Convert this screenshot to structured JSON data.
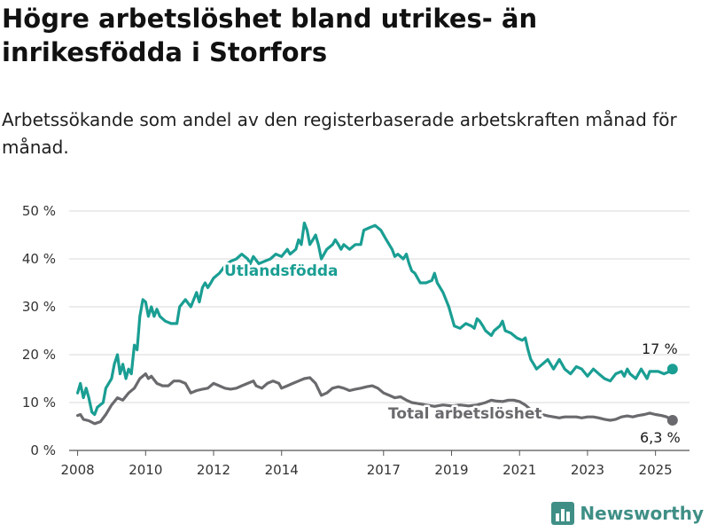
{
  "title": "Högre arbetslöshet bland utrikes- än inrikesfödda i Storfors",
  "subtitle": "Arbetssökande som andel av den registerbaserade arbetskraften månad för månad.",
  "brand": "Newsworthy",
  "colors": {
    "foreign": "#1a9e93",
    "total": "#6a6a6e",
    "grid": "#d9d9d9",
    "brand": "#3f8f86"
  },
  "chart_data": {
    "type": "line",
    "title": "Högre arbetslöshet bland utrikes- än inrikesfödda i Storfors",
    "xlabel": "",
    "ylabel": "",
    "xlim": [
      2007.75,
      2026.0
    ],
    "ylim": [
      0,
      50
    ],
    "y_ticks": [
      0,
      10,
      20,
      30,
      40,
      50
    ],
    "y_tick_labels": [
      "0 %",
      "10 %",
      "20 %",
      "30 %",
      "40 %",
      "50 %"
    ],
    "x_ticks": [
      2008,
      2010,
      2012,
      2014,
      2017,
      2019,
      2021,
      2023,
      2025
    ],
    "x_tick_labels": [
      "2008",
      "2010",
      "2012",
      "2014",
      "2017",
      "2019",
      "2021",
      "2023",
      "2025"
    ],
    "grid": true,
    "series": [
      {
        "name": "Utlandsfödda",
        "end_label": "17 %",
        "points": [
          [
            2008.0,
            12
          ],
          [
            2008.08,
            14
          ],
          [
            2008.17,
            11
          ],
          [
            2008.25,
            13
          ],
          [
            2008.33,
            11
          ],
          [
            2008.42,
            8
          ],
          [
            2008.5,
            7.5
          ],
          [
            2008.58,
            9
          ],
          [
            2008.75,
            10
          ],
          [
            2008.83,
            13
          ],
          [
            2009.0,
            15
          ],
          [
            2009.08,
            18
          ],
          [
            2009.17,
            20
          ],
          [
            2009.25,
            16
          ],
          [
            2009.33,
            18
          ],
          [
            2009.42,
            15
          ],
          [
            2009.5,
            17
          ],
          [
            2009.58,
            16
          ],
          [
            2009.67,
            22
          ],
          [
            2009.75,
            21
          ],
          [
            2009.83,
            28
          ],
          [
            2009.92,
            31.5
          ],
          [
            2010.0,
            31
          ],
          [
            2010.08,
            28
          ],
          [
            2010.17,
            30
          ],
          [
            2010.25,
            28
          ],
          [
            2010.33,
            29.5
          ],
          [
            2010.42,
            28
          ],
          [
            2010.58,
            27
          ],
          [
            2010.75,
            26.5
          ],
          [
            2010.92,
            26.5
          ],
          [
            2011.0,
            30
          ],
          [
            2011.17,
            31.5
          ],
          [
            2011.33,
            30
          ],
          [
            2011.5,
            33
          ],
          [
            2011.58,
            31
          ],
          [
            2011.67,
            34
          ],
          [
            2011.75,
            35
          ],
          [
            2011.83,
            34
          ],
          [
            2011.92,
            35
          ],
          [
            2012.0,
            36
          ],
          [
            2012.17,
            37
          ],
          [
            2012.33,
            38.5
          ],
          [
            2012.5,
            39.5
          ],
          [
            2012.67,
            40
          ],
          [
            2012.83,
            41
          ],
          [
            2013.0,
            40
          ],
          [
            2013.08,
            39
          ],
          [
            2013.17,
            40.5
          ],
          [
            2013.33,
            39
          ],
          [
            2013.5,
            39.5
          ],
          [
            2013.67,
            40
          ],
          [
            2013.83,
            41
          ],
          [
            2014.0,
            40.5
          ],
          [
            2014.17,
            42
          ],
          [
            2014.25,
            41
          ],
          [
            2014.42,
            42
          ],
          [
            2014.5,
            44
          ],
          [
            2014.58,
            43
          ],
          [
            2014.67,
            47.5
          ],
          [
            2014.75,
            46
          ],
          [
            2014.83,
            43
          ],
          [
            2014.92,
            44
          ],
          [
            2015.0,
            45
          ],
          [
            2015.08,
            43
          ],
          [
            2015.17,
            40
          ],
          [
            2015.33,
            42
          ],
          [
            2015.5,
            43
          ],
          [
            2015.58,
            44
          ],
          [
            2015.67,
            43
          ],
          [
            2015.75,
            42
          ],
          [
            2015.83,
            43
          ],
          [
            2016.0,
            42
          ],
          [
            2016.17,
            43
          ],
          [
            2016.33,
            43
          ],
          [
            2016.42,
            46
          ],
          [
            2016.58,
            46.5
          ],
          [
            2016.75,
            47
          ],
          [
            2016.92,
            46
          ],
          [
            2017.08,
            44
          ],
          [
            2017.25,
            42
          ],
          [
            2017.33,
            40.5
          ],
          [
            2017.42,
            41
          ],
          [
            2017.58,
            40
          ],
          [
            2017.67,
            41
          ],
          [
            2017.75,
            39
          ],
          [
            2017.83,
            37.5
          ],
          [
            2017.92,
            37
          ],
          [
            2018.08,
            35
          ],
          [
            2018.25,
            35
          ],
          [
            2018.42,
            35.5
          ],
          [
            2018.5,
            37
          ],
          [
            2018.58,
            35
          ],
          [
            2018.75,
            33
          ],
          [
            2018.92,
            30
          ],
          [
            2019.0,
            28
          ],
          [
            2019.08,
            26
          ],
          [
            2019.25,
            25.5
          ],
          [
            2019.42,
            26.5
          ],
          [
            2019.58,
            26
          ],
          [
            2019.67,
            25.5
          ],
          [
            2019.75,
            27.5
          ],
          [
            2019.83,
            27
          ],
          [
            2019.92,
            26
          ],
          [
            2020.0,
            25
          ],
          [
            2020.17,
            24
          ],
          [
            2020.25,
            25
          ],
          [
            2020.42,
            26
          ],
          [
            2020.5,
            27
          ],
          [
            2020.58,
            25
          ],
          [
            2020.75,
            24.5
          ],
          [
            2020.92,
            23.5
          ],
          [
            2021.08,
            23
          ],
          [
            2021.17,
            23.5
          ],
          [
            2021.25,
            21
          ],
          [
            2021.33,
            19
          ],
          [
            2021.42,
            18
          ],
          [
            2021.5,
            17
          ],
          [
            2021.67,
            18
          ],
          [
            2021.83,
            19
          ],
          [
            2022.0,
            17
          ],
          [
            2022.17,
            19
          ],
          [
            2022.33,
            17
          ],
          [
            2022.5,
            16
          ],
          [
            2022.67,
            17.5
          ],
          [
            2022.83,
            17
          ],
          [
            2023.0,
            15.5
          ],
          [
            2023.17,
            17
          ],
          [
            2023.33,
            16
          ],
          [
            2023.5,
            15
          ],
          [
            2023.67,
            14.5
          ],
          [
            2023.83,
            16
          ],
          [
            2024.0,
            16.5
          ],
          [
            2024.08,
            15.5
          ],
          [
            2024.17,
            17
          ],
          [
            2024.25,
            16
          ],
          [
            2024.42,
            15
          ],
          [
            2024.58,
            17
          ],
          [
            2024.75,
            15
          ],
          [
            2024.83,
            16.5
          ],
          [
            2025.08,
            16.5
          ],
          [
            2025.25,
            16
          ],
          [
            2025.42,
            16.5
          ],
          [
            2025.5,
            17
          ]
        ]
      },
      {
        "name": "Total arbetslöshet",
        "end_label": "6,3 %",
        "points": [
          [
            2008.0,
            7.3
          ],
          [
            2008.08,
            7.5
          ],
          [
            2008.17,
            6.5
          ],
          [
            2008.33,
            6.2
          ],
          [
            2008.5,
            5.6
          ],
          [
            2008.67,
            6
          ],
          [
            2008.83,
            7.5
          ],
          [
            2009.0,
            9.5
          ],
          [
            2009.17,
            11
          ],
          [
            2009.33,
            10.5
          ],
          [
            2009.5,
            12
          ],
          [
            2009.67,
            13
          ],
          [
            2009.83,
            15
          ],
          [
            2010.0,
            16
          ],
          [
            2010.08,
            15
          ],
          [
            2010.17,
            15.5
          ],
          [
            2010.33,
            14
          ],
          [
            2010.5,
            13.5
          ],
          [
            2010.67,
            13.5
          ],
          [
            2010.83,
            14.5
          ],
          [
            2011.0,
            14.5
          ],
          [
            2011.17,
            14
          ],
          [
            2011.33,
            12
          ],
          [
            2011.5,
            12.5
          ],
          [
            2011.67,
            12.8
          ],
          [
            2011.83,
            13
          ],
          [
            2012.0,
            14
          ],
          [
            2012.17,
            13.5
          ],
          [
            2012.33,
            13
          ],
          [
            2012.5,
            12.8
          ],
          [
            2012.67,
            13
          ],
          [
            2012.83,
            13.5
          ],
          [
            2013.0,
            14
          ],
          [
            2013.17,
            14.5
          ],
          [
            2013.25,
            13.5
          ],
          [
            2013.42,
            13
          ],
          [
            2013.58,
            14
          ],
          [
            2013.75,
            14.5
          ],
          [
            2013.92,
            14
          ],
          [
            2014.0,
            13
          ],
          [
            2014.17,
            13.5
          ],
          [
            2014.33,
            14
          ],
          [
            2014.5,
            14.5
          ],
          [
            2014.67,
            15
          ],
          [
            2014.83,
            15.2
          ],
          [
            2015.0,
            14
          ],
          [
            2015.17,
            11.5
          ],
          [
            2015.33,
            12
          ],
          [
            2015.5,
            13
          ],
          [
            2015.67,
            13.3
          ],
          [
            2015.83,
            13
          ],
          [
            2016.0,
            12.5
          ],
          [
            2016.17,
            12.8
          ],
          [
            2016.33,
            13
          ],
          [
            2016.5,
            13.3
          ],
          [
            2016.67,
            13.5
          ],
          [
            2016.83,
            13
          ],
          [
            2017.0,
            12
          ],
          [
            2017.17,
            11.5
          ],
          [
            2017.33,
            11
          ],
          [
            2017.5,
            11.2
          ],
          [
            2017.67,
            10.5
          ],
          [
            2017.83,
            10
          ],
          [
            2018.0,
            9.8
          ],
          [
            2018.25,
            9.5
          ],
          [
            2018.5,
            9.2
          ],
          [
            2018.75,
            9.5
          ],
          [
            2019.0,
            9.3
          ],
          [
            2019.25,
            9.5
          ],
          [
            2019.5,
            9.3
          ],
          [
            2019.75,
            9.5
          ],
          [
            2020.0,
            10
          ],
          [
            2020.17,
            10.5
          ],
          [
            2020.33,
            10.3
          ],
          [
            2020.5,
            10.2
          ],
          [
            2020.67,
            10.5
          ],
          [
            2020.83,
            10.5
          ],
          [
            2021.0,
            10.2
          ],
          [
            2021.17,
            9.5
          ],
          [
            2021.33,
            8.5
          ],
          [
            2021.5,
            8
          ],
          [
            2021.67,
            7.5
          ],
          [
            2021.83,
            7.2
          ],
          [
            2022.0,
            7
          ],
          [
            2022.17,
            6.8
          ],
          [
            2022.33,
            7
          ],
          [
            2022.5,
            7
          ],
          [
            2022.67,
            7
          ],
          [
            2022.83,
            6.8
          ],
          [
            2023.0,
            7
          ],
          [
            2023.17,
            7
          ],
          [
            2023.33,
            6.8
          ],
          [
            2023.5,
            6.5
          ],
          [
            2023.67,
            6.3
          ],
          [
            2023.83,
            6.5
          ],
          [
            2024.0,
            7
          ],
          [
            2024.17,
            7.2
          ],
          [
            2024.33,
            7
          ],
          [
            2024.5,
            7.3
          ],
          [
            2024.67,
            7.5
          ],
          [
            2024.83,
            7.8
          ],
          [
            2025.0,
            7.5
          ],
          [
            2025.17,
            7.3
          ],
          [
            2025.33,
            7
          ],
          [
            2025.5,
            6.3
          ]
        ]
      }
    ]
  }
}
